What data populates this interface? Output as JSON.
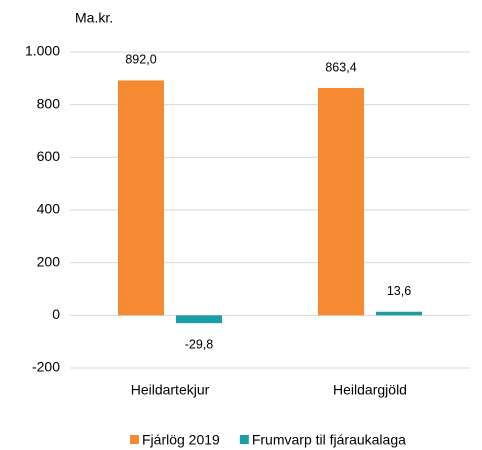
{
  "chart_data": {
    "type": "bar",
    "y_axis_label": "Ma.kr.",
    "categories": [
      "Heildartekjur",
      "Heildargjöld"
    ],
    "series": [
      {
        "name": "Fjárlög 2019",
        "color": "#f58a33",
        "values": [
          892.0,
          863.4
        ],
        "value_labels": [
          "892,0",
          "863,4"
        ]
      },
      {
        "name": "Frumvarp til fjáraukalaga",
        "color": "#1c9ea6",
        "values": [
          -29.8,
          13.6
        ],
        "value_labels": [
          "-29,8",
          "13,6"
        ]
      }
    ],
    "ylim": [
      -200,
      1000
    ],
    "yticks": [
      -200,
      0,
      200,
      400,
      600,
      800,
      {
        "value": 1000,
        "label": "1.000"
      }
    ],
    "grid": true,
    "legend": "bottom"
  }
}
